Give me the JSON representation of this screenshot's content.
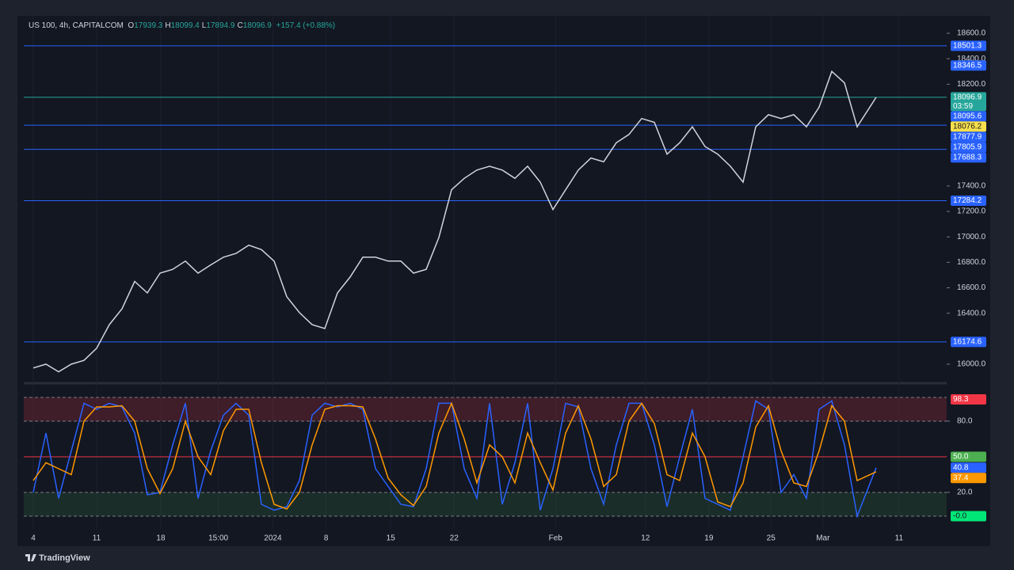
{
  "header": {
    "symbol": "US 100, 4h, CAPITALCOM",
    "ohlc": [
      {
        "label": "O",
        "value": "17939.3"
      },
      {
        "label": "H",
        "value": "18099.4"
      },
      {
        "label": "L",
        "value": "17894.9"
      },
      {
        "label": "C",
        "value": "18096.9"
      }
    ],
    "change": "+157.4 (+0.88%)"
  },
  "chart_data": [
    {
      "type": "line",
      "x": [
        0,
        1,
        2,
        3,
        4,
        5,
        6,
        7,
        8,
        9,
        10,
        11,
        12,
        13,
        14,
        15,
        16,
        17,
        18,
        19,
        20,
        21,
        22,
        23,
        24,
        25,
        26,
        27,
        28,
        29,
        30,
        31,
        32,
        33,
        34,
        35,
        36,
        37,
        38,
        39,
        40,
        41,
        42,
        43,
        44,
        45,
        46,
        47,
        48,
        49,
        50,
        51,
        52,
        53,
        54,
        55,
        56,
        57,
        58,
        59,
        60,
        61,
        62,
        63,
        64,
        65,
        66.5
      ],
      "series": [
        {
          "color": "#d1d4dc",
          "values": [
            15970,
            16000,
            15940,
            16000,
            16030,
            16125,
            16310,
            16435,
            16650,
            16560,
            16715,
            16745,
            16810,
            16715,
            16780,
            16840,
            16870,
            16935,
            16900,
            16810,
            16530,
            16405,
            16310,
            16280,
            16560,
            16685,
            16840,
            16840,
            16810,
            16810,
            16715,
            16745,
            16995,
            17370,
            17460,
            17525,
            17555,
            17525,
            17460,
            17555,
            17430,
            17215,
            17370,
            17525,
            17620,
            17590,
            17740,
            17805,
            17930,
            17900,
            17650,
            17740,
            17865,
            17710,
            17650,
            17555,
            17430,
            17865,
            17960,
            17930,
            17960,
            17865,
            18020,
            18300,
            18210,
            17865,
            18096.9
          ]
        }
      ],
      "xlim": [
        -0.75,
        72.06
      ],
      "xticks": [
        {
          "value": 0,
          "label": "4"
        },
        {
          "value": 5,
          "label": "11"
        },
        {
          "value": 10.06,
          "label": "18"
        },
        {
          "value": 14.6,
          "label": "15:00"
        },
        {
          "value": 18.9,
          "label": "2024"
        },
        {
          "value": 23.1,
          "label": "8"
        },
        {
          "value": 28.2,
          "label": "15"
        },
        {
          "value": 33.2,
          "label": "22"
        },
        {
          "value": 41.2,
          "label": "Feb"
        },
        {
          "value": 48.3,
          "label": "12"
        },
        {
          "value": 53.3,
          "label": "19"
        },
        {
          "value": 58.2,
          "label": "25"
        },
        {
          "value": 62.3,
          "label": "Mar"
        },
        {
          "value": 68.3,
          "label": "11"
        }
      ],
      "ylim": [
        15863,
        18737
      ],
      "yticks": [
        {
          "value": 16000,
          "label": "16000.0"
        },
        {
          "value": 16400,
          "label": "16400.0"
        },
        {
          "value": 16600,
          "label": "16600.0"
        },
        {
          "value": 16800,
          "label": "16800.0"
        },
        {
          "value": 17000,
          "label": "17000.0"
        },
        {
          "value": 17200,
          "label": "17200.0"
        },
        {
          "value": 17400,
          "label": "17400.0"
        },
        {
          "value": 18200,
          "label": "18200.0"
        },
        {
          "value": 18400,
          "label": "18400.0"
        },
        {
          "value": 18600,
          "label": "18600.0"
        }
      ],
      "levels": [
        {
          "value": 18501.3,
          "color": "#2962ff",
          "line": true
        },
        {
          "value": 18346.5,
          "color": "#2962ff",
          "line": false
        },
        {
          "value": 18096.9,
          "color": "#26a69a",
          "line": true,
          "countdown": "03:59"
        },
        {
          "value": 18095.6,
          "color": "#2962ff",
          "line": false
        },
        {
          "value": 18076.2,
          "color": "#f7e04b",
          "line": false
        },
        {
          "value": 17877.9,
          "color": "#2962ff",
          "line": true
        },
        {
          "value": 17805.9,
          "color": "#2962ff",
          "line": false
        },
        {
          "value": 17688.3,
          "color": "#2962ff",
          "line": true
        },
        {
          "value": 17284.2,
          "color": "#2962ff",
          "line": true
        },
        {
          "value": 16174.6,
          "color": "#2962ff",
          "line": true
        }
      ]
    },
    {
      "type": "line",
      "x": [
        0,
        1,
        2,
        3,
        4,
        5,
        6,
        7,
        8,
        9,
        10,
        11,
        12,
        13,
        14,
        15,
        16,
        17,
        18,
        19,
        20,
        21,
        22,
        23,
        24,
        25,
        26,
        27,
        28,
        29,
        30,
        31,
        32,
        33,
        34,
        35,
        36,
        37,
        38,
        39,
        40,
        41,
        42,
        43,
        44,
        45,
        46,
        47,
        48,
        49,
        50,
        51,
        52,
        53,
        54,
        55,
        56,
        57,
        58,
        59,
        60,
        61,
        62,
        63,
        64,
        65,
        66.5
      ],
      "series": [
        {
          "color": "#2962ff",
          "values": [
            20,
            70,
            15,
            55,
            95,
            90,
            95,
            92,
            70,
            18,
            20,
            60,
            95,
            15,
            55,
            85,
            95,
            85,
            10,
            5,
            8,
            30,
            85,
            95,
            92,
            95,
            90,
            40,
            25,
            10,
            8,
            40,
            95,
            95,
            40,
            15,
            95,
            10,
            45,
            95,
            5,
            40,
            95,
            92,
            40,
            10,
            60,
            95,
            95,
            60,
            8,
            50,
            90,
            15,
            10,
            5,
            50,
            97,
            90,
            20,
            35,
            15,
            90,
            97,
            60,
            0,
            40.8
          ]
        },
        {
          "color": "#ff9800",
          "values": [
            30,
            45,
            40,
            35,
            80,
            92,
            92,
            93,
            80,
            40,
            19,
            40,
            80,
            50,
            35,
            72,
            90,
            90,
            45,
            10,
            6,
            20,
            60,
            90,
            93,
            93,
            92,
            65,
            32,
            18,
            9,
            25,
            70,
            95,
            65,
            28,
            60,
            50,
            28,
            70,
            45,
            22,
            70,
            93,
            65,
            25,
            35,
            80,
            95,
            78,
            35,
            30,
            70,
            50,
            12,
            8,
            28,
            75,
            93,
            55,
            28,
            25,
            55,
            93,
            80,
            30,
            37.4
          ]
        }
      ],
      "xlim": [
        -0.75,
        72.06
      ],
      "ylim": [
        -10.7,
        109.3
      ],
      "yticks": [
        {
          "value": 20,
          "label": "20.0"
        },
        {
          "value": 80,
          "label": "80.0"
        }
      ],
      "zones": [
        {
          "from": 80,
          "to": 100,
          "color": "#f2364533"
        },
        {
          "from": 0,
          "to": 20,
          "color": "#4caf5026"
        }
      ],
      "midline": 50,
      "levels": [
        {
          "value": 98.3,
          "color": "#f23645"
        },
        {
          "value": 50,
          "label": "50.0",
          "color": "#4caf50"
        },
        {
          "value": 40.8,
          "color": "#2962ff"
        },
        {
          "value": 37.4,
          "color": "#ff9800"
        },
        {
          "value": 0,
          "label": "-0.0",
          "color": "#00e676"
        }
      ]
    }
  ],
  "footer": "TradingView"
}
